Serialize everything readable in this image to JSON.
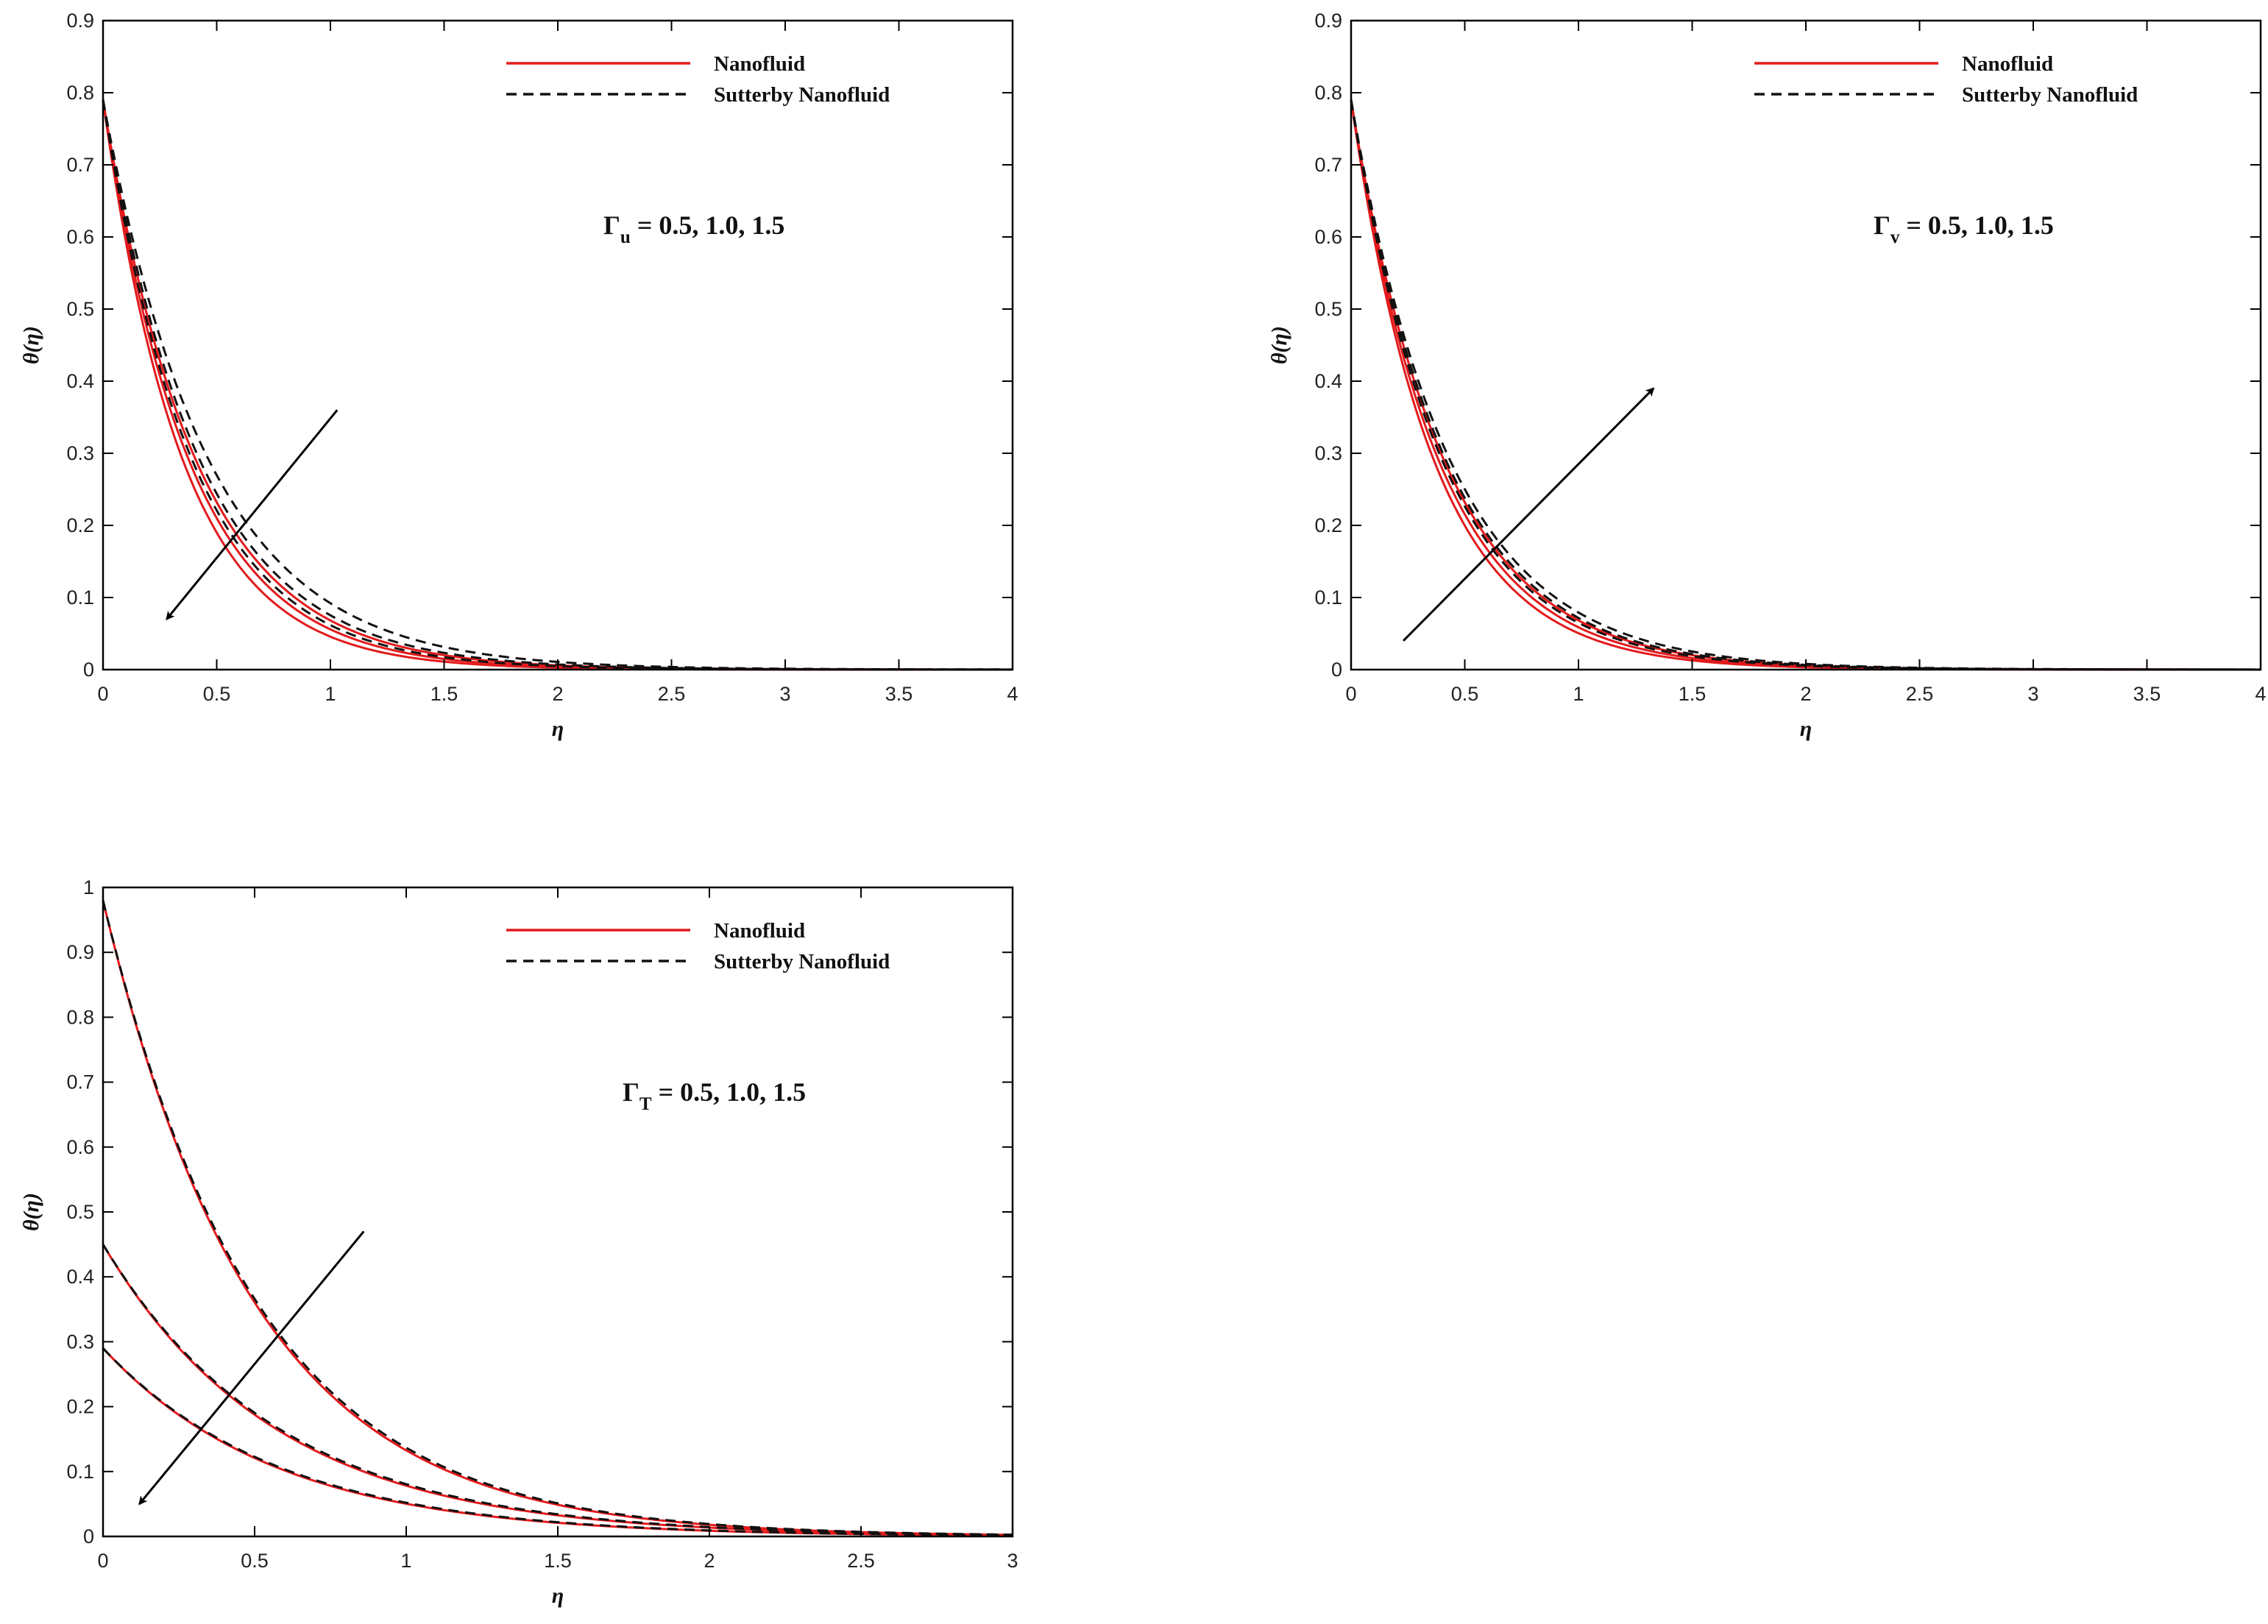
{
  "colors": {
    "nanofluid": "#e31a1c",
    "sutterby": "#111111",
    "axis": "#000000"
  },
  "chart_data": [
    {
      "type": "line",
      "panel": "top-left",
      "xlabel": "η",
      "ylabel": "θ(η)",
      "xlim": [
        0,
        4
      ],
      "ylim": [
        0,
        0.9
      ],
      "xticks": [
        0,
        0.5,
        1,
        1.5,
        2,
        2.5,
        3,
        3.5,
        4
      ],
      "yticks": [
        0,
        0.1,
        0.2,
        0.3,
        0.4,
        0.5,
        0.6,
        0.7,
        0.8,
        0.9
      ],
      "legend": {
        "position": "top-right",
        "entries": [
          "Nanofluid",
          "Sutterby Nanofluid"
        ]
      },
      "annotation": {
        "symbol": "Γ",
        "subscript": "u",
        "text": " = 0.5, 1.0, 1.5"
      },
      "arrow": {
        "from": [
          1.03,
          0.36
        ],
        "to": [
          0.28,
          0.07
        ],
        "direction": "decreasing"
      },
      "series": [
        {
          "name": "Nanofluid",
          "param": "0.5",
          "theta0": 0.79,
          "decay": 2.45
        },
        {
          "name": "Nanofluid",
          "param": "1.0",
          "theta0": 0.79,
          "decay": 2.65
        },
        {
          "name": "Nanofluid",
          "param": "1.5",
          "theta0": 0.79,
          "decay": 2.85
        },
        {
          "name": "Sutterby Nanofluid",
          "param": "0.5",
          "theta0": 0.79,
          "decay": 2.15
        },
        {
          "name": "Sutterby Nanofluid",
          "param": "1.0",
          "theta0": 0.79,
          "decay": 2.35
        },
        {
          "name": "Sutterby Nanofluid",
          "param": "1.5",
          "theta0": 0.79,
          "decay": 2.55
        }
      ]
    },
    {
      "type": "line",
      "panel": "top-right",
      "xlabel": "η",
      "ylabel": "θ(η)",
      "xlim": [
        0,
        4
      ],
      "ylim": [
        0,
        0.9
      ],
      "xticks": [
        0,
        0.5,
        1,
        1.5,
        2,
        2.5,
        3,
        3.5,
        4
      ],
      "yticks": [
        0,
        0.1,
        0.2,
        0.3,
        0.4,
        0.5,
        0.6,
        0.7,
        0.8,
        0.9
      ],
      "legend": {
        "position": "top-right",
        "entries": [
          "Nanofluid",
          "Sutterby Nanofluid"
        ]
      },
      "annotation": {
        "symbol": "Γ",
        "subscript": "v",
        "text": " = 0.5, 1.0, 1.5"
      },
      "arrow": {
        "from": [
          0.23,
          0.04
        ],
        "to": [
          1.33,
          0.39
        ],
        "direction": "increasing"
      },
      "series": [
        {
          "name": "Nanofluid",
          "param": "0.5",
          "theta0": 0.79,
          "decay": 2.75
        },
        {
          "name": "Nanofluid",
          "param": "1.0",
          "theta0": 0.79,
          "decay": 2.6
        },
        {
          "name": "Nanofluid",
          "param": "1.5",
          "theta0": 0.79,
          "decay": 2.45
        },
        {
          "name": "Sutterby Nanofluid",
          "param": "0.5",
          "theta0": 0.79,
          "decay": 2.5
        },
        {
          "name": "Sutterby Nanofluid",
          "param": "1.0",
          "theta0": 0.79,
          "decay": 2.4
        },
        {
          "name": "Sutterby Nanofluid",
          "param": "1.5",
          "theta0": 0.79,
          "decay": 2.3
        }
      ]
    },
    {
      "type": "line",
      "panel": "bottom-left",
      "xlabel": "η",
      "ylabel": "θ(η)",
      "xlim": [
        0,
        3
      ],
      "ylim": [
        0,
        1
      ],
      "xticks": [
        0,
        0.5,
        1,
        1.5,
        2,
        2.5,
        3
      ],
      "yticks": [
        0,
        0.1,
        0.2,
        0.3,
        0.4,
        0.5,
        0.6,
        0.7,
        0.8,
        0.9,
        1
      ],
      "legend": {
        "position": "top-right",
        "entries": [
          "Nanofluid",
          "Sutterby Nanofluid"
        ]
      },
      "annotation": {
        "symbol": "Γ",
        "subscript": "T",
        "text": " = 0.5, 1.0, 1.5"
      },
      "arrow": {
        "from": [
          0.86,
          0.47
        ],
        "to": [
          0.12,
          0.05
        ],
        "direction": "decreasing"
      },
      "series": [
        {
          "name": "Nanofluid",
          "param": "0.5",
          "theta0": 0.98,
          "decay": 2.0
        },
        {
          "name": "Nanofluid",
          "param": "1.0",
          "theta0": 0.45,
          "decay": 1.75
        },
        {
          "name": "Nanofluid",
          "param": "1.5",
          "theta0": 0.29,
          "decay": 1.75
        },
        {
          "name": "Sutterby Nanofluid",
          "param": "0.5",
          "theta0": 0.98,
          "decay": 1.97
        },
        {
          "name": "Sutterby Nanofluid",
          "param": "1.0",
          "theta0": 0.45,
          "decay": 1.72
        },
        {
          "name": "Sutterby Nanofluid",
          "param": "1.5",
          "theta0": 0.29,
          "decay": 1.72
        }
      ]
    }
  ]
}
